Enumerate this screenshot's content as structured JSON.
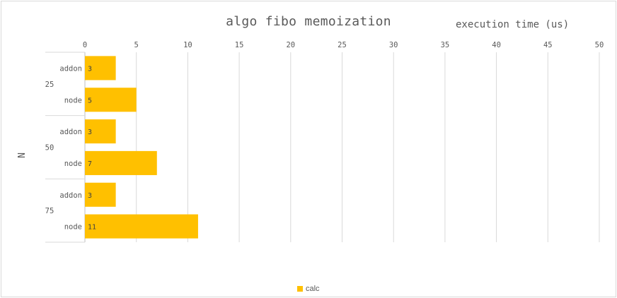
{
  "chart_data": {
    "type": "bar",
    "orientation": "horizontal",
    "title": "algo fibo memoization",
    "xlabel": "execution time (us)",
    "ylabel": "N",
    "xlim": [
      0,
      50
    ],
    "x_ticks": [
      0,
      5,
      10,
      15,
      20,
      25,
      30,
      35,
      40,
      45,
      50
    ],
    "x_axis_position": "top",
    "grid": true,
    "legend_position": "bottom",
    "groups": [
      {
        "label": "25",
        "categories": [
          "addon",
          "node"
        ],
        "values": [
          3,
          5
        ]
      },
      {
        "label": "50",
        "categories": [
          "addon",
          "node"
        ],
        "values": [
          3,
          7
        ]
      },
      {
        "label": "75",
        "categories": [
          "addon",
          "node"
        ],
        "values": [
          3,
          11
        ]
      }
    ],
    "series": [
      {
        "name": "calc",
        "color": "#FFC000"
      }
    ],
    "data_labels": true
  }
}
